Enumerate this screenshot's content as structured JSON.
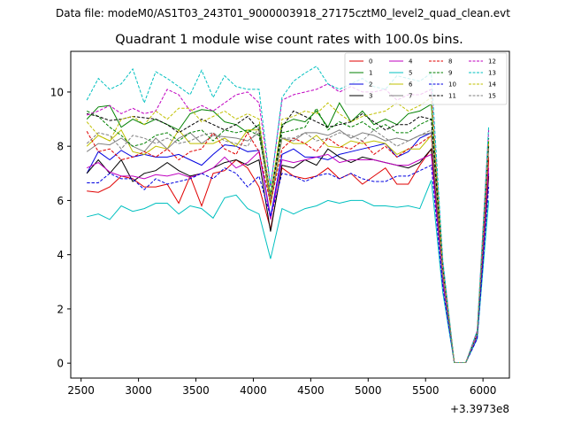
{
  "supertitle": "Data file: modeM0/AS1T03_243T01_9000003918_27175cztM0_level2_quad_clean.evt",
  "chart_data": {
    "type": "line",
    "title": "Quadrant 1 module wise count rates with 100.0s bins.",
    "xlabel": "",
    "ylabel": "",
    "x_offset_label": "+3.3973e8",
    "xlim": [
      2410,
      6230
    ],
    "ylim": [
      -0.55,
      11.5
    ],
    "x_ticks": [
      2500,
      3000,
      3500,
      4000,
      4500,
      5000,
      5500,
      6000
    ],
    "x_tick_labels": [
      "2500",
      "3000",
      "3500",
      "4000",
      "4500",
      "5000",
      "5500",
      "6000"
    ],
    "y_ticks": [
      0,
      2,
      4,
      6,
      8,
      10
    ],
    "y_tick_labels": [
      "0",
      "2",
      "4",
      "6",
      "8",
      "10"
    ],
    "grid": false,
    "legend_position": "top-right",
    "x": [
      2550,
      2650,
      2750,
      2850,
      2950,
      3050,
      3150,
      3250,
      3350,
      3450,
      3550,
      3650,
      3750,
      3850,
      3950,
      4050,
      4150,
      4250,
      4350,
      4450,
      4550,
      4650,
      4750,
      4850,
      4950,
      5050,
      5150,
      5250,
      5350,
      5450,
      5550,
      5650,
      5750,
      5850,
      5950,
      6050
    ],
    "series": [
      {
        "name": "0",
        "color": "#e00000",
        "dash": "solid",
        "values": [
          6.35,
          6.3,
          6.5,
          6.9,
          6.8,
          6.5,
          6.5,
          6.6,
          5.9,
          6.9,
          5.8,
          7.0,
          7.1,
          7.5,
          7.2,
          6.5,
          4.95,
          7.2,
          6.9,
          6.8,
          6.9,
          7.2,
          6.8,
          7.0,
          6.6,
          6.9,
          7.2,
          6.6,
          6.6,
          7.3,
          7.9,
          3.1,
          0.02,
          0.02,
          1.0,
          7.5
        ]
      },
      {
        "name": "1",
        "color": "#008000",
        "dash": "solid",
        "values": [
          9.0,
          9.45,
          9.5,
          8.7,
          9.0,
          8.8,
          9.0,
          8.8,
          8.6,
          9.2,
          9.35,
          9.3,
          8.9,
          8.8,
          8.5,
          8.8,
          6.2,
          8.8,
          9.0,
          8.9,
          9.3,
          8.7,
          9.6,
          8.9,
          9.3,
          8.8,
          9.0,
          8.8,
          9.2,
          9.3,
          9.55,
          3.6,
          0.02,
          0.02,
          1.1,
          8.0
        ]
      },
      {
        "name": "2",
        "color": "#0000e0",
        "dash": "solid",
        "values": [
          7.0,
          7.8,
          7.5,
          7.85,
          7.6,
          7.7,
          7.6,
          7.6,
          7.7,
          7.5,
          7.3,
          7.7,
          8.05,
          8.0,
          7.8,
          7.85,
          5.4,
          7.7,
          7.9,
          7.6,
          7.6,
          7.5,
          7.7,
          7.8,
          7.9,
          8.0,
          8.1,
          7.6,
          7.8,
          8.3,
          8.5,
          3.3,
          0.02,
          0.02,
          1.0,
          7.0
        ]
      },
      {
        "name": "3",
        "color": "#000000",
        "dash": "solid",
        "values": [
          7.0,
          7.5,
          7.0,
          7.5,
          6.7,
          7.0,
          7.1,
          7.4,
          7.1,
          6.9,
          7.0,
          7.2,
          7.4,
          7.5,
          7.3,
          7.5,
          4.85,
          7.3,
          7.2,
          7.5,
          7.3,
          7.9,
          7.6,
          7.4,
          7.6,
          7.5,
          7.4,
          7.3,
          7.2,
          7.4,
          7.9,
          3.0,
          0.02,
          0.02,
          1.0,
          6.9
        ]
      },
      {
        "name": "4",
        "color": "#c000c0",
        "dash": "solid",
        "values": [
          7.2,
          7.4,
          7.05,
          6.9,
          6.9,
          6.8,
          6.95,
          6.9,
          7.0,
          6.85,
          7.0,
          7.2,
          7.6,
          7.2,
          7.4,
          7.8,
          5.3,
          7.5,
          7.4,
          7.5,
          7.6,
          7.7,
          7.4,
          7.5,
          7.5,
          7.5,
          7.4,
          7.3,
          7.3,
          7.5,
          7.7,
          3.0,
          0.02,
          0.02,
          1.0,
          7.2
        ]
      },
      {
        "name": "5",
        "color": "#00c0c0",
        "dash": "solid",
        "values": [
          5.4,
          5.5,
          5.3,
          5.8,
          5.6,
          5.7,
          5.9,
          5.9,
          5.5,
          5.8,
          5.7,
          5.35,
          6.1,
          6.2,
          5.7,
          5.5,
          3.85,
          5.7,
          5.5,
          5.7,
          5.8,
          6.0,
          5.9,
          6.0,
          6.0,
          5.8,
          5.8,
          5.75,
          5.8,
          5.7,
          6.75,
          2.6,
          0.02,
          0.02,
          0.9,
          6.0
        ]
      },
      {
        "name": "6",
        "color": "#c0c000",
        "dash": "solid",
        "values": [
          8.0,
          8.4,
          8.2,
          8.6,
          7.8,
          7.7,
          8.0,
          7.9,
          8.6,
          8.1,
          8.1,
          8.1,
          8.3,
          8.0,
          8.6,
          8.6,
          5.8,
          8.3,
          8.1,
          8.1,
          8.4,
          8.0,
          7.95,
          8.2,
          8.1,
          8.2,
          8.1,
          7.7,
          7.9,
          7.9,
          8.4,
          3.3,
          0.02,
          0.02,
          1.1,
          8.2
        ]
      },
      {
        "name": "7",
        "color": "#808080",
        "dash": "solid",
        "values": [
          7.8,
          8.1,
          8.05,
          8.3,
          8.0,
          7.8,
          8.3,
          7.9,
          8.3,
          8.5,
          8.1,
          8.4,
          8.35,
          8.3,
          8.2,
          8.5,
          6.0,
          8.3,
          8.2,
          8.5,
          8.5,
          8.4,
          8.6,
          8.3,
          8.5,
          8.4,
          8.2,
          8.3,
          8.2,
          8.4,
          8.5,
          3.3,
          0.02,
          0.02,
          1.1,
          8.0
        ]
      },
      {
        "name": "8",
        "color": "#e00000",
        "dash": "dashed",
        "values": [
          8.55,
          7.8,
          7.9,
          7.5,
          7.6,
          7.8,
          7.6,
          7.9,
          7.5,
          7.8,
          7.9,
          8.5,
          7.9,
          7.7,
          8.5,
          7.8,
          5.9,
          7.9,
          8.3,
          8.1,
          7.8,
          8.3,
          8.0,
          7.9,
          8.2,
          7.7,
          8.0,
          7.6,
          7.9,
          8.1,
          8.4,
          3.3,
          0.02,
          0.02,
          1.1,
          7.6
        ]
      },
      {
        "name": "9",
        "color": "#008000",
        "dash": "dashed",
        "values": [
          9.3,
          9.1,
          8.7,
          8.4,
          8.0,
          8.1,
          8.4,
          8.5,
          8.2,
          8.5,
          8.6,
          8.2,
          8.6,
          8.5,
          8.6,
          8.4,
          6.1,
          8.5,
          8.6,
          8.7,
          9.4,
          8.6,
          8.9,
          8.7,
          8.9,
          8.6,
          8.8,
          8.5,
          8.5,
          8.8,
          9.0,
          3.5,
          0.02,
          0.02,
          1.1,
          8.3
        ]
      },
      {
        "name": "10",
        "color": "#0000e0",
        "dash": "dashed",
        "values": [
          6.65,
          6.65,
          7.0,
          6.8,
          6.8,
          6.4,
          6.8,
          6.6,
          6.7,
          6.8,
          7.0,
          6.8,
          7.2,
          7.0,
          6.5,
          6.9,
          5.4,
          7.0,
          6.9,
          6.7,
          6.9,
          7.0,
          6.8,
          7.0,
          6.8,
          6.7,
          6.7,
          6.9,
          6.9,
          7.1,
          7.3,
          2.8,
          0.02,
          0.02,
          0.9,
          6.5
        ]
      },
      {
        "name": "11",
        "color": "#000000",
        "dash": "dashed",
        "values": [
          9.2,
          9.1,
          8.95,
          9.0,
          9.1,
          9.05,
          9.0,
          8.8,
          8.5,
          8.75,
          9.0,
          8.8,
          8.6,
          8.8,
          9.1,
          8.6,
          6.1,
          8.7,
          9.3,
          9.1,
          8.9,
          8.7,
          8.8,
          8.9,
          9.2,
          8.9,
          8.6,
          8.8,
          8.8,
          9.1,
          9.0,
          3.5,
          0.02,
          0.02,
          1.1,
          8.1
        ]
      },
      {
        "name": "12",
        "color": "#c000c0",
        "dash": "dashed",
        "values": [
          9.15,
          9.3,
          9.5,
          9.2,
          9.4,
          9.2,
          9.3,
          10.1,
          9.9,
          9.3,
          9.5,
          9.3,
          9.6,
          9.9,
          10.0,
          9.6,
          6.5,
          9.7,
          9.9,
          10.0,
          10.1,
          10.3,
          10.0,
          10.2,
          10.0,
          10.0,
          10.1,
          9.7,
          9.9,
          9.9,
          10.1,
          3.7,
          0.02,
          0.02,
          1.2,
          8.6
        ]
      },
      {
        "name": "13",
        "color": "#00c0c0",
        "dash": "dashed",
        "values": [
          9.7,
          10.5,
          10.1,
          10.3,
          10.85,
          9.6,
          10.75,
          10.5,
          10.2,
          9.9,
          10.8,
          9.8,
          10.6,
          10.2,
          10.1,
          10.1,
          6.5,
          9.8,
          10.4,
          10.7,
          10.95,
          10.3,
          10.1,
          10.3,
          10.5,
          10.2,
          10.1,
          10.6,
          10.5,
          10.4,
          10.7,
          3.8,
          0.02,
          0.02,
          1.2,
          8.75
        ]
      },
      {
        "name": "14",
        "color": "#c0c000",
        "dash": "dashed",
        "values": [
          8.9,
          8.4,
          8.2,
          9.0,
          9.1,
          8.8,
          9.3,
          9.0,
          9.4,
          9.4,
          8.9,
          9.1,
          9.3,
          9.0,
          9.2,
          9.0,
          6.1,
          9.0,
          9.1,
          9.3,
          9.2,
          9.6,
          9.2,
          8.9,
          9.1,
          9.2,
          9.3,
          9.6,
          9.3,
          9.5,
          9.8,
          3.5,
          0.02,
          0.02,
          1.1,
          8.2
        ]
      },
      {
        "name": "15",
        "color": "#808080",
        "dash": "dashed",
        "values": [
          8.1,
          8.5,
          8.4,
          7.9,
          8.4,
          8.3,
          8.1,
          8.3,
          8.1,
          8.2,
          8.4,
          8.5,
          8.2,
          8.1,
          8.0,
          8.7,
          6.0,
          8.3,
          8.3,
          8.5,
          8.2,
          8.3,
          8.5,
          8.4,
          8.2,
          8.6,
          8.3,
          8.0,
          8.2,
          8.4,
          8.6,
          3.3,
          0.02,
          0.02,
          1.1,
          7.9
        ]
      }
    ]
  }
}
